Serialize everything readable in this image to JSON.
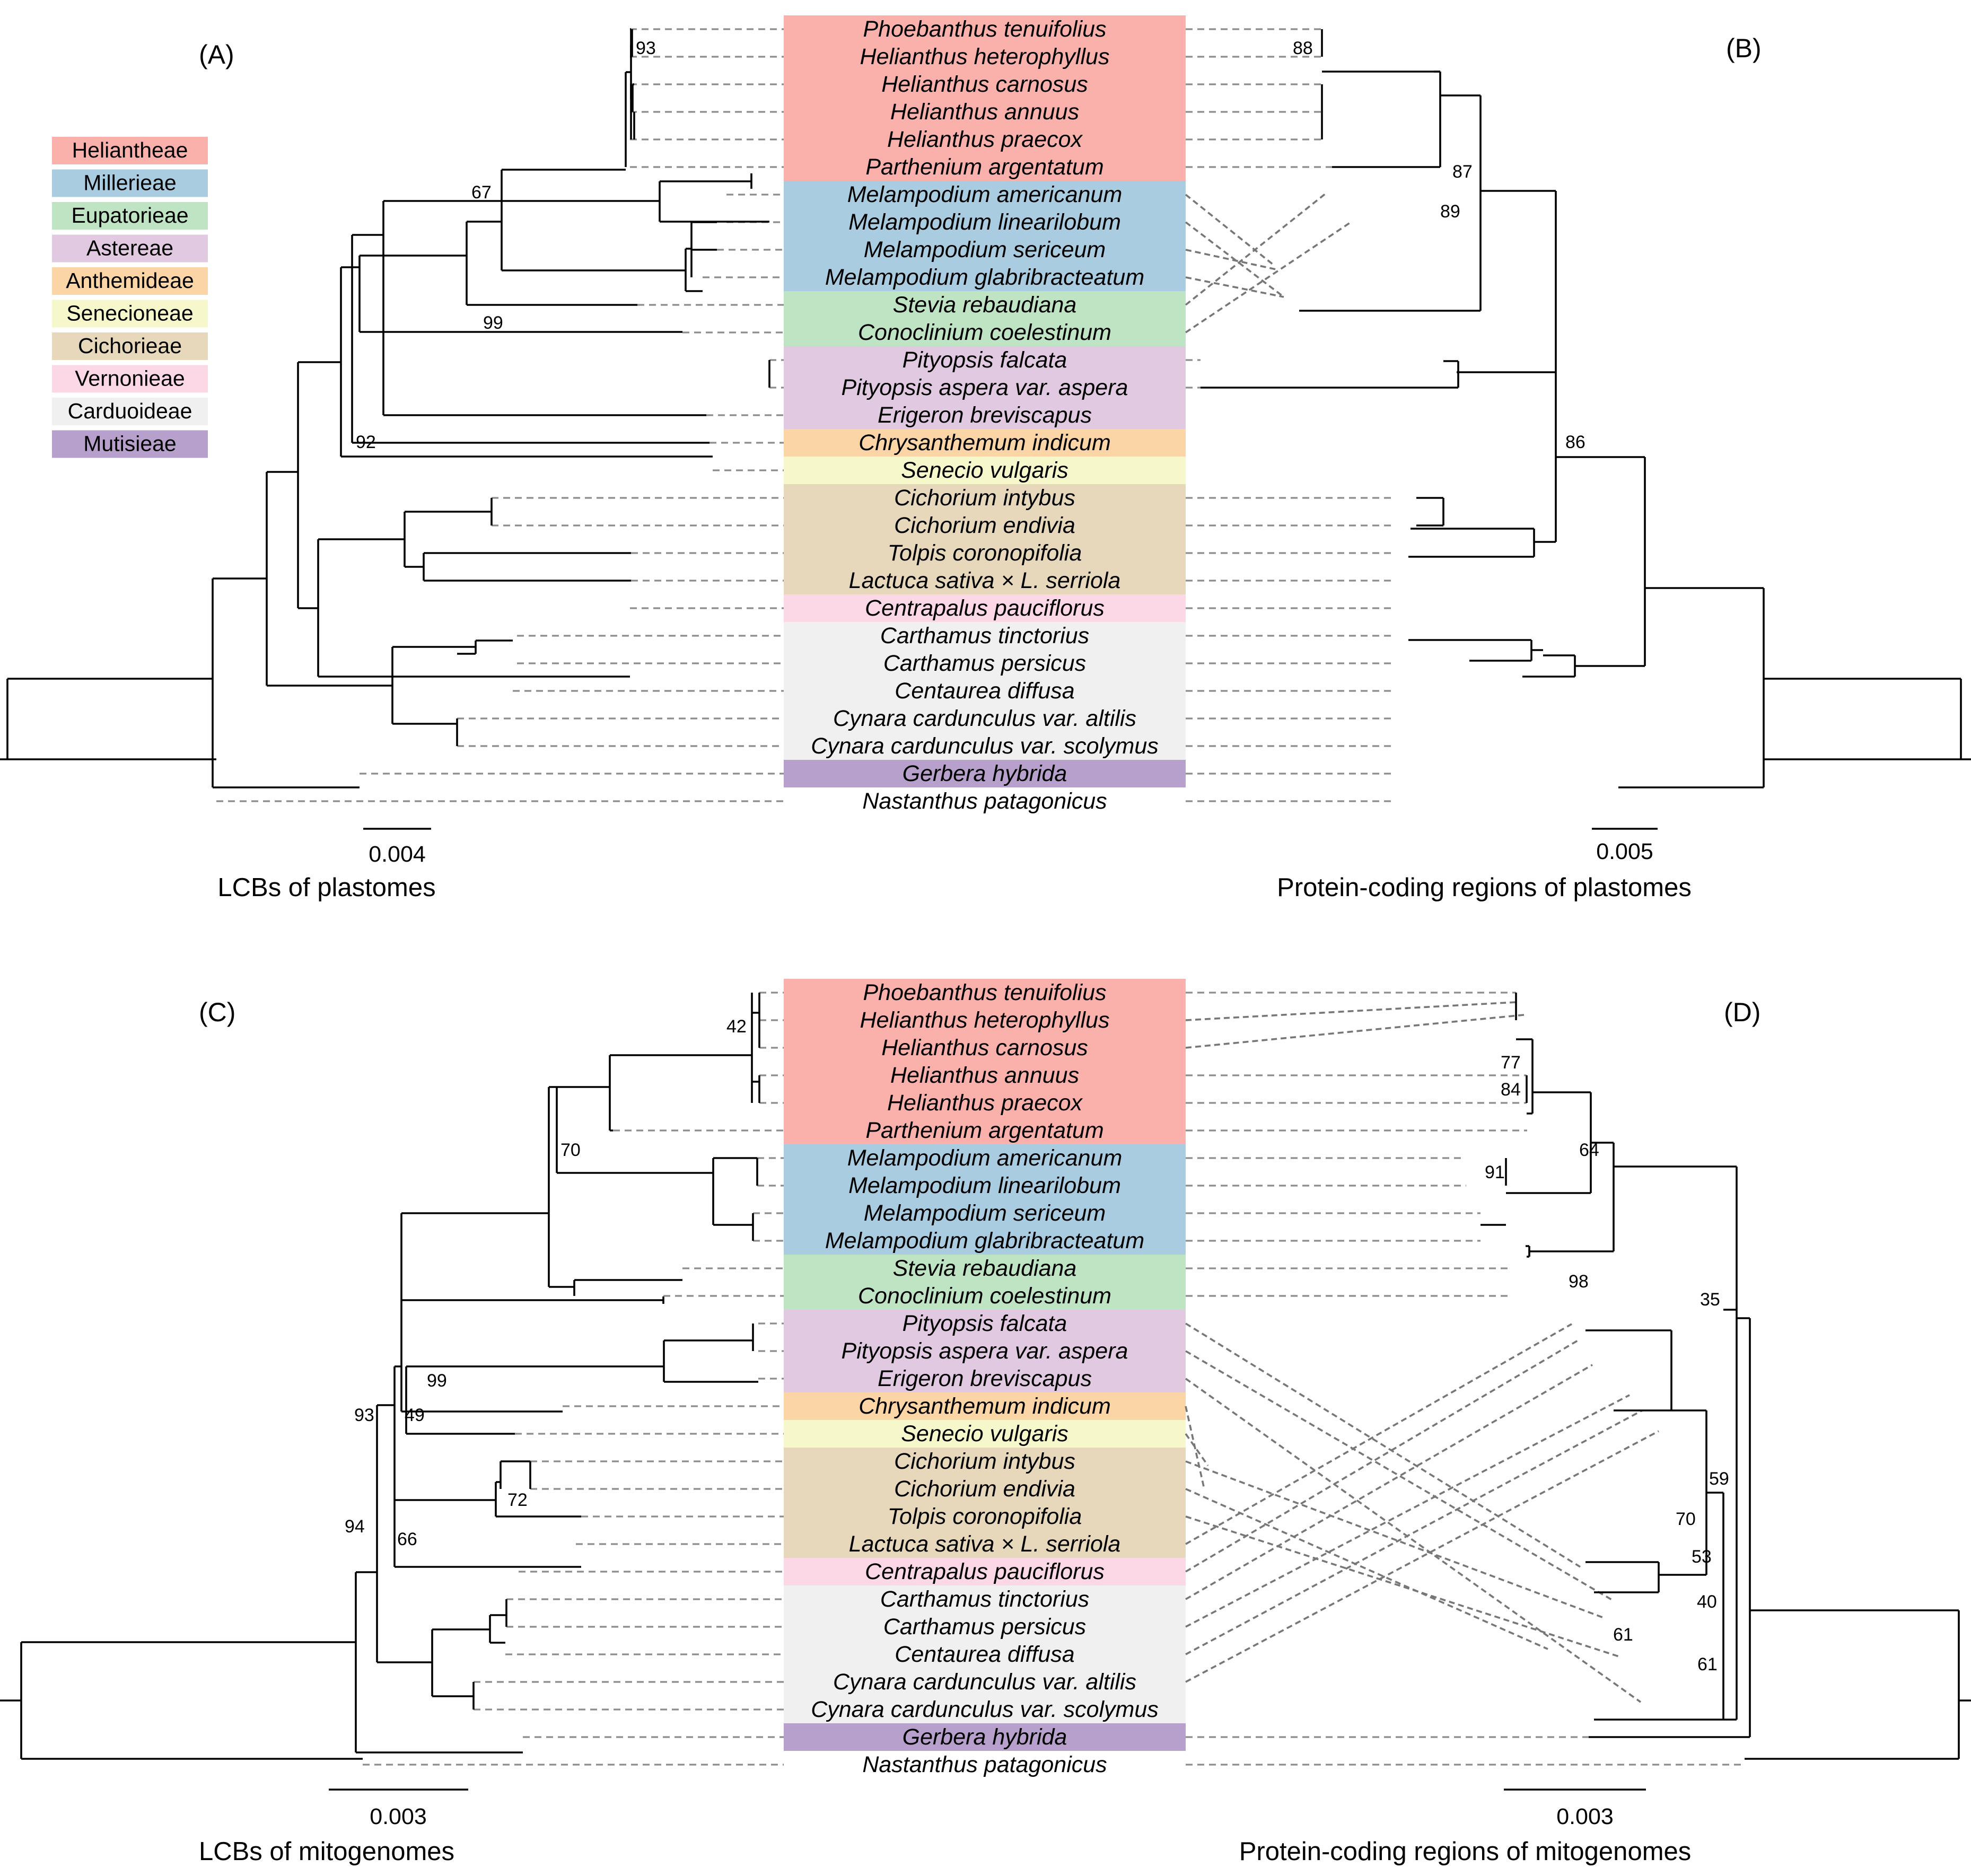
{
  "panels": {
    "A": "(A)",
    "B": "(B)",
    "C": "(C)",
    "D": "(D)"
  },
  "titles": {
    "A": "LCBs of plastomes",
    "B": "Protein-coding regions of plastomes",
    "C": "LCBs of mitogenomes",
    "D": "Protein-coding regions of mitogenomes"
  },
  "scales": {
    "A": "0.004",
    "B": "0.005",
    "C": "0.003",
    "D": "0.003"
  },
  "legend": [
    {
      "label": "Heliantheae",
      "color": "#fbb1ab"
    },
    {
      "label": "Millerieae",
      "color": "#a9cce1"
    },
    {
      "label": "Eupatorieae",
      "color": "#bfe4c3"
    },
    {
      "label": "Astereae",
      "color": "#e2c9e2"
    },
    {
      "label": "Anthemideae",
      "color": "#fcd5a6"
    },
    {
      "label": "Senecioneae",
      "color": "#f6f7cb"
    },
    {
      "label": "Cichorieae",
      "color": "#e7d7bb"
    },
    {
      "label": "Vernonieae",
      "color": "#fcd8e6"
    },
    {
      "label": "Carduoideae",
      "color": "#f0f0f0"
    },
    {
      "label": "Mutisieae",
      "color": "#b7a0cc"
    }
  ],
  "taxa": [
    {
      "name": "Phoebanthus tenuifolius",
      "group": 0
    },
    {
      "name": "Helianthus heterophyllus",
      "group": 0
    },
    {
      "name": "Helianthus carnosus",
      "group": 0
    },
    {
      "name": "Helianthus annuus",
      "group": 0
    },
    {
      "name": "Helianthus praecox",
      "group": 0
    },
    {
      "name": "Parthenium argentatum",
      "group": 0
    },
    {
      "name": "Melampodium americanum",
      "group": 1
    },
    {
      "name": "Melampodium linearilobum",
      "group": 1
    },
    {
      "name": "Melampodium sericeum",
      "group": 1
    },
    {
      "name": "Melampodium glabribracteatum",
      "group": 1
    },
    {
      "name": "Stevia rebaudiana",
      "group": 2
    },
    {
      "name": "Conoclinium coelestinum",
      "group": 2
    },
    {
      "name": "Pityopsis falcata",
      "group": 3
    },
    {
      "name": "Pityopsis aspera var. aspera",
      "group": 3
    },
    {
      "name": "Erigeron breviscapus",
      "group": 3
    },
    {
      "name": "Chrysanthemum indicum",
      "group": 4
    },
    {
      "name": "Senecio vulgaris",
      "group": 5
    },
    {
      "name": "Cichorium intybus",
      "group": 6
    },
    {
      "name": "Cichorium endivia",
      "group": 6
    },
    {
      "name": "Tolpis coronopifolia",
      "group": 6
    },
    {
      "name": "Lactuca sativa × L. serriola",
      "group": 6
    },
    {
      "name": "Centrapalus pauciflorus",
      "group": 7
    },
    {
      "name": "Carthamus tinctorius",
      "group": 8
    },
    {
      "name": "Carthamus persicus",
      "group": 8
    },
    {
      "name": "Centaurea diffusa",
      "group": 8
    },
    {
      "name": "Cynara cardunculus var. altilis",
      "group": 8
    },
    {
      "name": "Cynara cardunculus var. scolymus",
      "group": 8
    },
    {
      "name": "Gerbera hybrida",
      "group": 9
    },
    {
      "name": "Nastanthus patagonicus",
      "group": -1
    }
  ],
  "support": {
    "A": [
      "93",
      "67",
      "99",
      "92"
    ],
    "B": [
      "88",
      "87",
      "89",
      "86"
    ],
    "C": [
      "42",
      "70",
      "99",
      "49",
      "93",
      "72",
      "66",
      "94"
    ],
    "D": [
      "77",
      "84",
      "64",
      "91",
      "98",
      "35",
      "59",
      "70",
      "53",
      "40",
      "61",
      "61"
    ]
  }
}
